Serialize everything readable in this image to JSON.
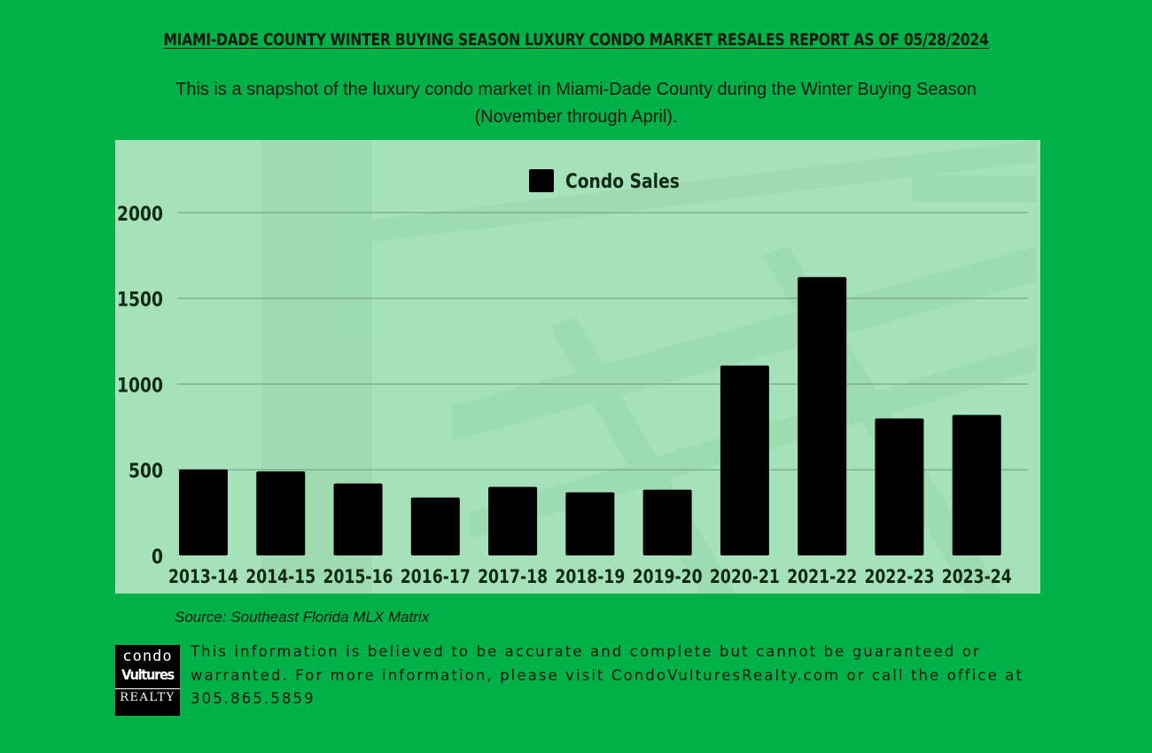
{
  "header": {
    "title": "MIAMI-DADE COUNTY WINTER BUYING SEASON LUXURY CONDO MARKET RESALES REPORT AS OF 05/28/2024",
    "subtitle": "This is a snapshot of the luxury condo market in Miami-Dade County during the Winter Buying Season (November through April)."
  },
  "chart_data": {
    "type": "bar",
    "title": "",
    "xlabel": "",
    "ylabel": "",
    "categories": [
      "2013-14",
      "2014-15",
      "2015-16",
      "2016-17",
      "2017-18",
      "2018-19",
      "2019-20",
      "2020-21",
      "2021-22",
      "2022-23",
      "2023-24"
    ],
    "series": [
      {
        "name": "Condo Sales",
        "values": [
          502,
          490,
          420,
          338,
          400,
          368,
          384,
          1108,
          1624,
          799,
          820
        ]
      }
    ],
    "ylim": [
      0,
      2000
    ],
    "yticks": [
      0,
      500,
      1000,
      1500,
      2000
    ],
    "grid": true,
    "legend_position": "top-center",
    "colors": {
      "bar": "#000000",
      "panel_background": "#a6e2b9",
      "gridline": "#6f9a7c",
      "axis_text": "#0c2a14"
    }
  },
  "footer": {
    "source": "Source: Southeast Florida MLX Matrix",
    "disclaimer": "This information is believed to be accurate and complete but cannot be guaranteed or warranted. For more information, please visit CondoVulturesRealty.com or call the office at 305.865.5859",
    "logo": {
      "line1": "condo",
      "line2": "Vultures",
      "line3": "REALTY"
    }
  },
  "colors": {
    "page_background": "#00b14a"
  }
}
